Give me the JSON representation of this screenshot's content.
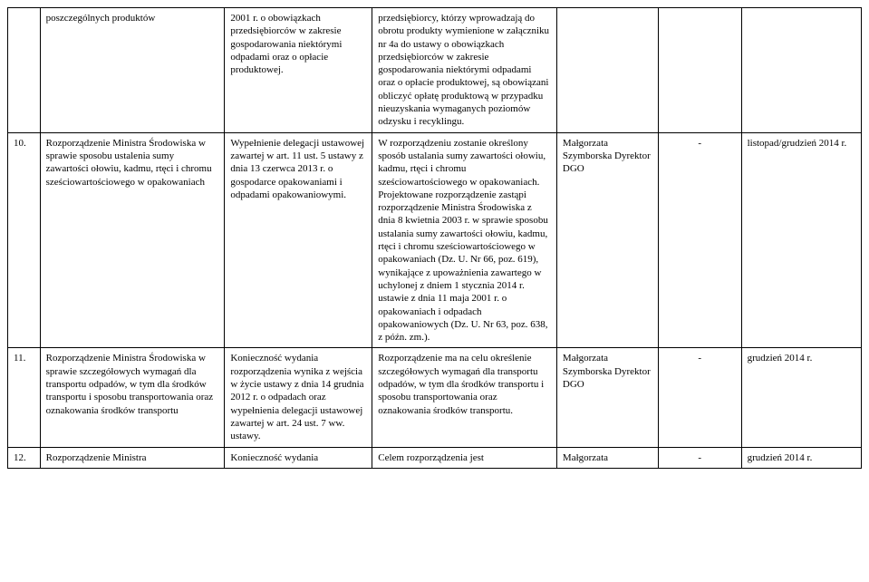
{
  "colors": {
    "background": "#ffffff",
    "text": "#000000",
    "border": "#000000"
  },
  "typography": {
    "font_family": "Times New Roman",
    "font_size_pt": 11,
    "line_height": 1.3
  },
  "table": {
    "columns": [
      {
        "key": "num",
        "width_pct": 3.5,
        "align": "left"
      },
      {
        "key": "title",
        "width_pct": 20,
        "align": "left"
      },
      {
        "key": "basis",
        "width_pct": 16,
        "align": "left"
      },
      {
        "key": "desc",
        "width_pct": 20,
        "align": "left"
      },
      {
        "key": "person",
        "width_pct": 11,
        "align": "left"
      },
      {
        "key": "flag",
        "width_pct": 9,
        "align": "center"
      },
      {
        "key": "date",
        "width_pct": 13,
        "align": "left"
      }
    ],
    "rows": [
      {
        "num": "",
        "title": "poszczególnych produktów",
        "basis": "2001 r. o obowiązkach przedsiębiorców w zakresie gospodarowania niektórymi odpadami oraz o opłacie produktowej.",
        "desc": "przedsiębiorcy, którzy wprowadzają do obrotu produkty wymienione w załączniku nr 4a do ustawy o obowiązkach przedsiębiorców w zakresie gospodarowania niektórymi odpadami oraz o opłacie produktowej, są obowiązani obliczyć opłatę produktową w przypadku nieuzyskania wymaganych poziomów odzysku i recyklingu.",
        "person": "",
        "flag": "",
        "date": ""
      },
      {
        "num": "10.",
        "title": "Rozporządzenie Ministra Środowiska w sprawie sposobu ustalenia sumy zawartości ołowiu, kadmu, rtęci i chromu sześciowartościowego w opakowaniach",
        "basis": "Wypełnienie delegacji ustawowej zawartej w art. 11 ust. 5 ustawy z dnia 13 czerwca 2013 r. o gospodarce opakowaniami i odpadami opakowaniowymi.",
        "desc": "W rozporządzeniu zostanie określony sposób ustalania sumy zawartości ołowiu, kadmu, rtęci i chromu sześciowartościowego w opakowaniach. Projektowane rozporządzenie zastąpi rozporządzenie Ministra Środowiska z dnia 8 kwietnia 2003 r. w sprawie sposobu ustalania sumy zawartości ołowiu, kadmu, rtęci i chromu sześciowartościowego w opakowaniach (Dz. U. Nr 66, poz. 619), wynikające z upoważnienia zawartego w uchylonej z dniem 1 stycznia 2014 r. ustawie z dnia 11 maja 2001 r. o opakowaniach i odpadach opakowaniowych (Dz. U. Nr 63, poz. 638, z późn. zm.).",
        "person": "Małgorzata Szymborska Dyrektor DGO",
        "flag": "-",
        "date": "listopad/grudzień 2014 r."
      },
      {
        "num": "11.",
        "title": "Rozporządzenie Ministra Środowiska w sprawie szczegółowych wymagań dla transportu odpadów, w tym dla środków transportu i sposobu transportowania oraz oznakowania środków transportu",
        "basis": "Konieczność wydania rozporządzenia wynika z wejścia w życie ustawy z dnia 14 grudnia 2012 r.  o odpadach oraz wypełnienia delegacji ustawowej zawartej w art. 24 ust. 7 ww. ustawy.",
        "desc": "Rozporządzenie ma na celu określenie szczegółowych wymagań dla transportu odpadów, w tym dla środków transportu i sposobu transportowania oraz oznakowania środków transportu.",
        "person": "Małgorzata Szymborska Dyrektor DGO",
        "flag": "-",
        "date": "grudzień 2014 r."
      },
      {
        "num": "12.",
        "title": "Rozporządzenie Ministra",
        "basis": "Konieczność wydania",
        "desc": "Celem rozporządzenia jest",
        "person": "Małgorzata",
        "flag": "-",
        "date": "grudzień 2014 r."
      }
    ]
  }
}
